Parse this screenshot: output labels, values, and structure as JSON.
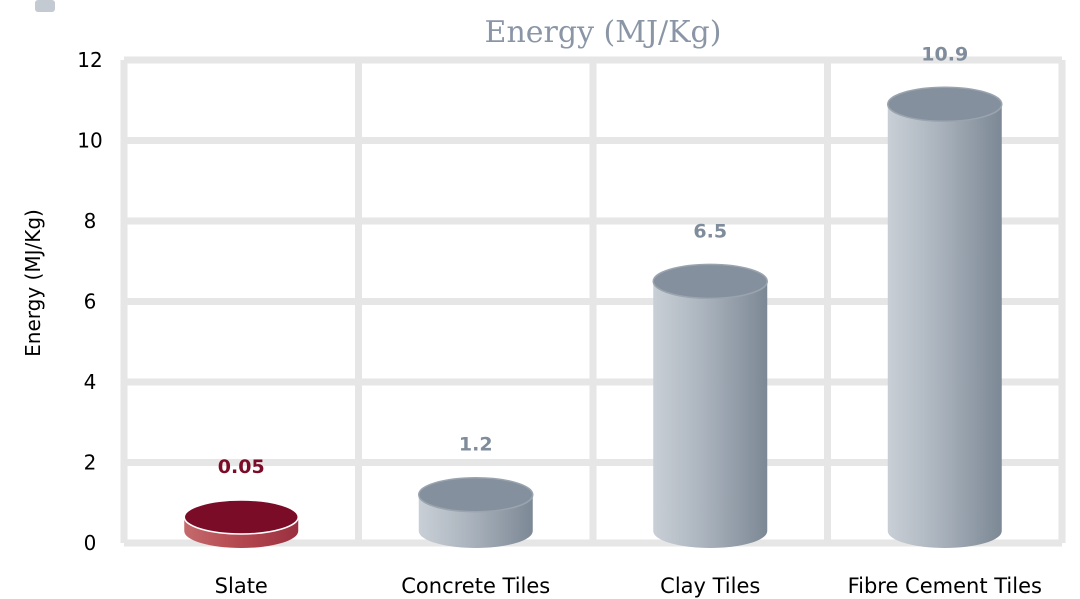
{
  "chart_data": {
    "type": "bar",
    "title": "Energy (MJ/Kg)",
    "xlabel": "",
    "ylabel": "Energy (MJ/Kg)",
    "ylim": [
      0,
      12
    ],
    "yticks": [
      "0",
      "2",
      "4",
      "6",
      "8",
      "10",
      "12"
    ],
    "grid": true,
    "categories": [
      "Slate",
      "Concrete Tiles",
      "Clay Tiles",
      "Fibre Cement Tiles"
    ],
    "values": [
      0.05,
      1.2,
      6.5,
      10.9
    ],
    "data_labels": [
      "0.05",
      "1.2",
      "6.5",
      "10.9"
    ],
    "bar_style": "cylinder",
    "colors": {
      "highlight": "#7a0c28",
      "highlight_side": "#b4474f",
      "default_top": "#84909d",
      "default_side_light": "#c8ced5",
      "default_side_dark": "#7f8b98",
      "default_label": "#7f8c9b",
      "grid": "#e6e6e6",
      "title": "#8a96a6"
    },
    "highlight_index": 0
  }
}
